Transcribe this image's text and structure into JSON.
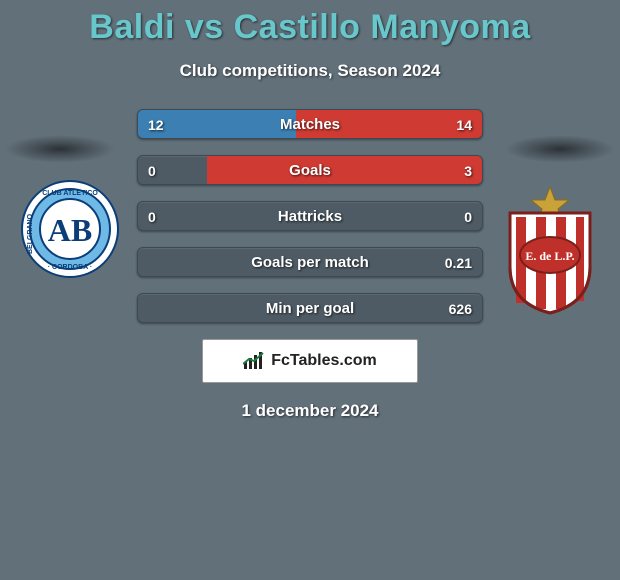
{
  "header": {
    "title": "Baldi vs Castillo Manyoma",
    "title_color": "#68c7cb",
    "subtitle": "Club competitions, Season 2024"
  },
  "style": {
    "page_bg": "#62707a",
    "bar_bg": "#4e5b65",
    "bar_border": "#3e4a53",
    "left_fill_color": "#3b7fb3",
    "right_fill_color": "#cf3a33",
    "text_shadow": "1px 1px 2px rgba(0,0,0,0.7)"
  },
  "left_club": {
    "name": "Club Atlético Belgrano Córdoba",
    "initials": "AB",
    "ring_text": "CLUB ATLETICO BELGRANO · CORDOBA ·",
    "primary": "#6fb9e6",
    "secondary": "#0b3e78",
    "accent": "#ffffff"
  },
  "right_club": {
    "name": "Estudiantes de La Plata",
    "initials": "E. de L.P.",
    "primary": "#c0302a",
    "secondary": "#ffffff",
    "star": "#c9a23a"
  },
  "bars": [
    {
      "label": "Matches",
      "left": "12",
      "right": "14",
      "left_pct": 46,
      "right_pct": 54
    },
    {
      "label": "Goals",
      "left": "0",
      "right": "3",
      "left_pct": 0,
      "right_pct": 80
    },
    {
      "label": "Hattricks",
      "left": "0",
      "right": "0",
      "left_pct": 0,
      "right_pct": 0
    },
    {
      "label": "Goals per match",
      "left": "",
      "right": "0.21",
      "left_pct": 0,
      "right_pct": 0
    },
    {
      "label": "Min per goal",
      "left": "",
      "right": "626",
      "left_pct": 0,
      "right_pct": 0
    }
  ],
  "footer": {
    "brand": "FcTables.com",
    "date": "1 december 2024"
  }
}
